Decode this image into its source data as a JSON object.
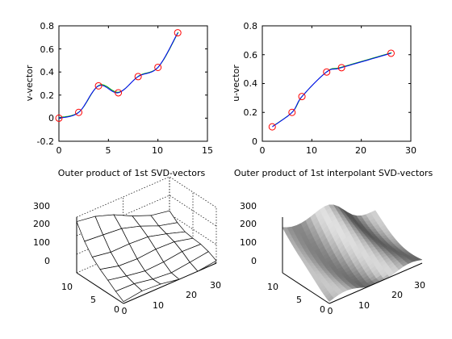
{
  "chart_data": [
    {
      "type": "line",
      "ylabel": "v-vector",
      "xlim": [
        0,
        15
      ],
      "ylim": [
        -0.2,
        0.8
      ],
      "xticks": [
        "0",
        "5",
        "10",
        "15"
      ],
      "yticks": [
        "-0.2",
        "0",
        "0.2",
        "0.4",
        "0.6",
        "0.8"
      ],
      "markers": {
        "x": [
          0,
          2,
          4,
          6,
          8,
          10,
          12
        ],
        "y": [
          0.0,
          0.05,
          0.28,
          0.22,
          0.36,
          0.44,
          0.74
        ]
      },
      "series_colors": [
        "#0000ff",
        "#00b000"
      ],
      "marker_color": "#ff0000"
    },
    {
      "type": "line",
      "ylabel": "u-vector",
      "xlim": [
        0,
        30
      ],
      "ylim": [
        0,
        0.8
      ],
      "xticks": [
        "0",
        "10",
        "20",
        "30"
      ],
      "yticks": [
        "0",
        "0.2",
        "0.4",
        "0.6",
        "0.8"
      ],
      "markers": {
        "x": [
          2,
          6,
          8,
          13,
          16,
          26
        ],
        "y": [
          0.1,
          0.2,
          0.31,
          0.48,
          0.51,
          0.61
        ]
      },
      "series_colors": [
        "#0000ff",
        "#00b000"
      ],
      "marker_color": "#ff0000"
    },
    {
      "type": "surface-mesh",
      "title": "Outer product of 1st SVD-vectors",
      "zticks": [
        "0",
        "100",
        "200",
        "300"
      ],
      "left_ticks": [
        "0",
        "5",
        "10"
      ],
      "right_ticks": [
        "10",
        "20",
        "30"
      ],
      "right_zero": "0"
    },
    {
      "type": "surface-filled",
      "title": "Outer product of 1st interpolant SVD-vectors",
      "zticks": [
        "0",
        "100",
        "200",
        "300"
      ],
      "left_ticks": [
        "0",
        "5",
        "10"
      ],
      "right_ticks": [
        "10",
        "20",
        "30"
      ],
      "right_zero": "0"
    }
  ]
}
